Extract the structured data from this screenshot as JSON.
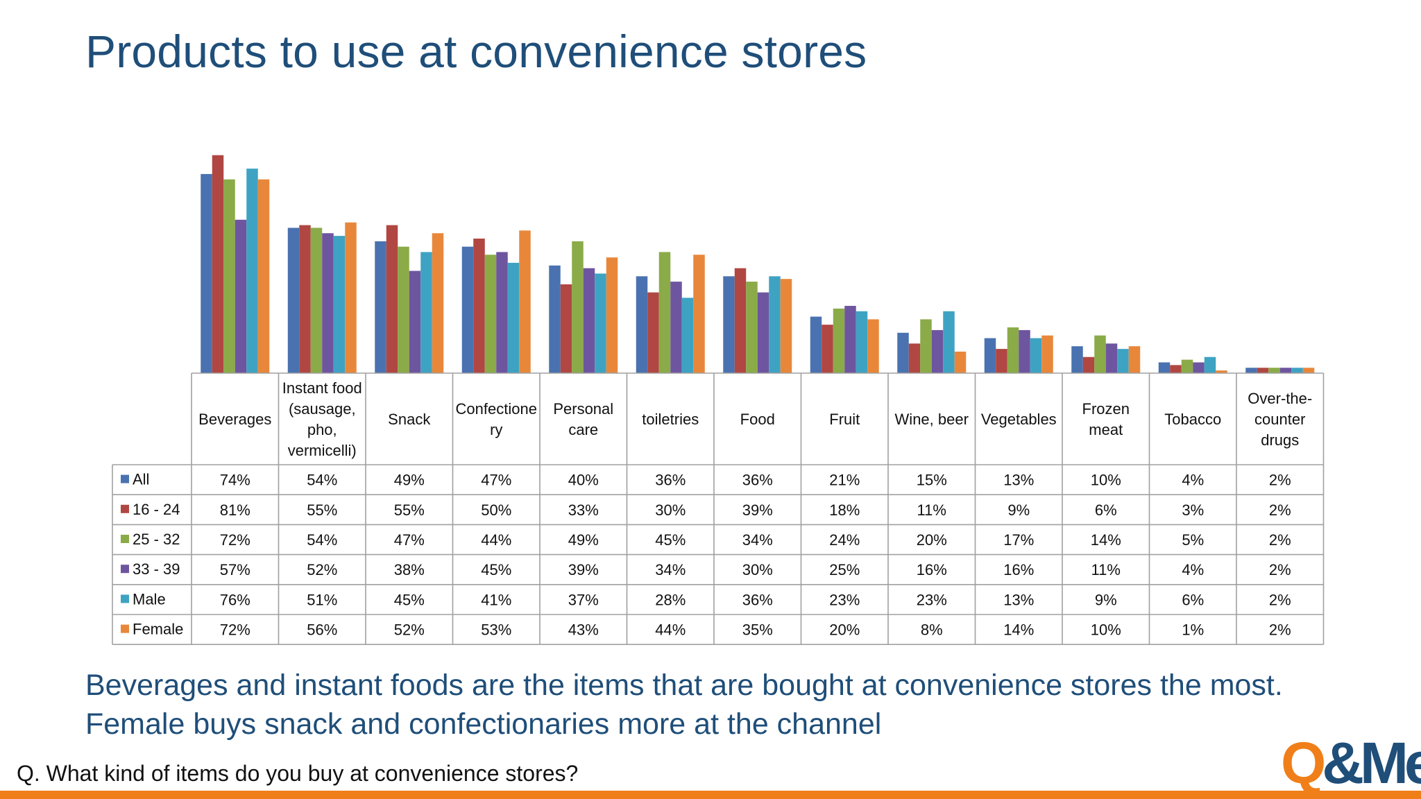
{
  "slide": {
    "title": "Products to use at convenience stores",
    "summary": "Beverages and instant foods are the items that are bought at convenience stores the most. Female buys snack and confectionaries more at the channel",
    "question": "Q. What kind of items do you buy at convenience stores?",
    "logo": {
      "q": "Q",
      "rest": "&Me"
    }
  },
  "colors": {
    "title": "#1f4e79",
    "accent_bar": "#f07f1a",
    "series": [
      "#4a72b0",
      "#b04742",
      "#8aab48",
      "#6e55a0",
      "#3ea3c2",
      "#e8873a"
    ]
  },
  "chart_data": {
    "type": "bar",
    "title": "",
    "xlabel": "",
    "ylabel": "",
    "ylim": [
      0,
      100
    ],
    "grid": false,
    "legend": "table-left",
    "categories": [
      "Beverages",
      "Instant food (sausage, pho, vermicelli)",
      "Snack",
      "Confectionery",
      "Personal care",
      "toiletries",
      "Food",
      "Fruit",
      "Wine, beer",
      "Vegetables",
      "Frozen meat",
      "Tobacco",
      "Over-the-counter drugs"
    ],
    "category_label_lines": [
      [
        "Beverages"
      ],
      [
        "Instant food",
        "(sausage,",
        "pho,",
        "vermicelli)"
      ],
      [
        "Snack"
      ],
      [
        "Confectione",
        "ry"
      ],
      [
        "Personal",
        "care"
      ],
      [
        "toiletries"
      ],
      [
        "Food"
      ],
      [
        "Fruit"
      ],
      [
        "Wine, beer"
      ],
      [
        "Vegetables"
      ],
      [
        "Frozen",
        "meat"
      ],
      [
        "Tobacco"
      ],
      [
        "Over-the-",
        "counter",
        "drugs"
      ]
    ],
    "series": [
      {
        "name": "All",
        "values": [
          74,
          54,
          49,
          47,
          40,
          36,
          36,
          21,
          15,
          13,
          10,
          4,
          2
        ]
      },
      {
        "name": "16 - 24",
        "values": [
          81,
          55,
          55,
          50,
          33,
          30,
          39,
          18,
          11,
          9,
          6,
          3,
          2
        ]
      },
      {
        "name": "25 - 32",
        "values": [
          72,
          54,
          47,
          44,
          49,
          45,
          34,
          24,
          20,
          17,
          14,
          5,
          2
        ]
      },
      {
        "name": "33 - 39",
        "values": [
          57,
          52,
          38,
          45,
          39,
          34,
          30,
          25,
          16,
          16,
          11,
          4,
          2
        ]
      },
      {
        "name": "Male",
        "values": [
          76,
          51,
          45,
          41,
          37,
          28,
          36,
          23,
          23,
          13,
          9,
          6,
          2
        ]
      },
      {
        "name": "Female",
        "values": [
          72,
          56,
          52,
          53,
          43,
          44,
          35,
          20,
          8,
          14,
          10,
          1,
          2
        ]
      }
    ],
    "value_suffix": "%"
  }
}
